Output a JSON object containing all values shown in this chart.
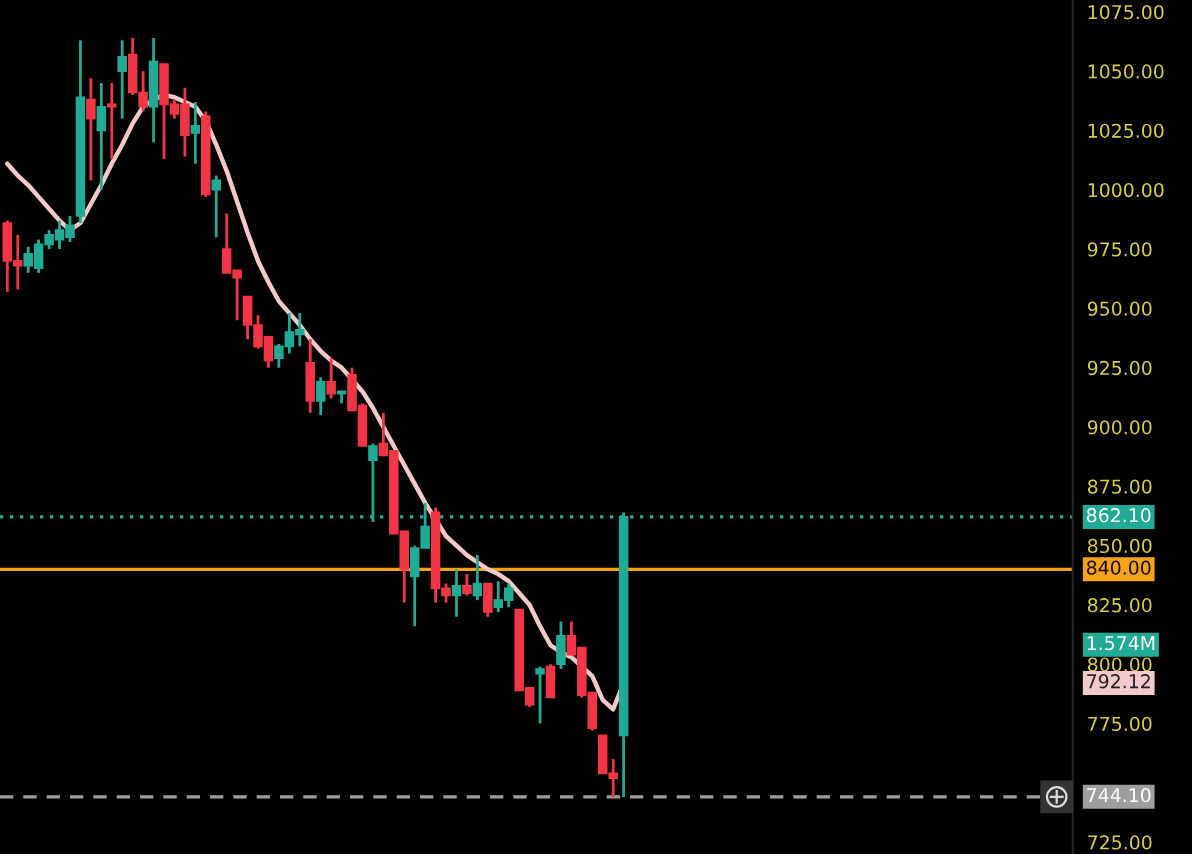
{
  "chart_data": {
    "type": "candlestick",
    "categories": [
      null,
      null,
      null,
      null,
      null,
      null,
      null,
      null,
      null,
      null,
      null,
      null,
      null,
      null,
      null,
      null,
      null,
      null,
      null,
      null,
      null,
      null,
      null,
      null,
      null,
      null,
      null,
      null,
      null,
      null,
      null,
      null,
      null,
      null,
      null,
      null,
      null,
      null,
      null,
      null,
      null,
      null,
      null,
      null,
      null,
      null,
      null,
      null,
      null,
      null,
      null,
      null,
      null,
      null,
      null,
      null,
      null,
      null,
      null,
      null
    ],
    "ohlc": [
      [
        986,
        987,
        957,
        970
      ],
      [
        970,
        981,
        958,
        968
      ],
      [
        968,
        976,
        965,
        973
      ],
      [
        967,
        979,
        965,
        977
      ],
      [
        977,
        983,
        975,
        981
      ],
      [
        979,
        987,
        975,
        983
      ],
      [
        980,
        989,
        978,
        985
      ],
      [
        989,
        1063,
        986,
        1039
      ],
      [
        1038,
        1047,
        1004,
        1030
      ],
      [
        1025,
        1045,
        1000,
        1035
      ],
      [
        1036,
        1045,
        1013,
        1035
      ],
      [
        1050,
        1063,
        1030,
        1056
      ],
      [
        1057,
        1064,
        1040,
        1041
      ],
      [
        1041,
        1050,
        1033,
        1035
      ],
      [
        1035,
        1064,
        1020,
        1054
      ],
      [
        1053,
        1053,
        1013,
        1036
      ],
      [
        1036,
        1038,
        1030,
        1032
      ],
      [
        1036,
        1043,
        1014,
        1023
      ],
      [
        1024,
        1037,
        1011,
        1027
      ],
      [
        1031,
        1033,
        997,
        998
      ],
      [
        1000,
        1006,
        980,
        1004
      ],
      [
        975,
        990,
        965,
        965
      ],
      [
        966,
        966,
        945,
        963
      ],
      [
        955,
        955,
        937,
        943
      ],
      [
        943,
        947,
        933,
        934
      ],
      [
        938,
        938,
        925,
        928
      ],
      [
        929,
        935,
        925,
        934
      ],
      [
        934,
        948,
        931,
        940
      ],
      [
        939,
        948,
        934,
        941
      ],
      [
        927,
        937,
        906,
        911
      ],
      [
        911,
        921,
        905,
        919
      ],
      [
        919,
        929,
        912,
        914
      ],
      [
        914,
        915,
        910,
        915
      ],
      [
        922,
        925,
        907,
        907
      ],
      [
        909,
        910,
        892,
        892
      ],
      [
        886,
        893,
        860,
        892
      ],
      [
        893,
        906,
        888,
        888
      ],
      [
        890,
        890,
        855,
        855
      ],
      [
        856,
        856,
        826,
        840
      ],
      [
        837,
        850,
        816,
        849
      ],
      [
        849,
        868,
        849,
        858
      ],
      [
        864,
        866,
        826,
        832
      ],
      [
        832,
        834,
        826,
        829
      ],
      [
        829,
        840,
        820,
        833
      ],
      [
        833,
        838,
        829,
        830
      ],
      [
        829,
        846,
        827,
        834
      ],
      [
        834,
        834,
        820,
        822
      ],
      [
        824,
        835,
        822,
        827
      ],
      [
        827,
        834,
        824,
        832
      ],
      [
        823,
        823,
        789,
        789
      ],
      [
        790,
        790,
        782,
        783
      ],
      [
        796,
        799,
        775,
        798
      ],
      [
        799,
        800,
        786,
        786
      ],
      [
        800,
        818,
        798,
        812
      ],
      [
        812,
        818,
        804,
        804
      ],
      [
        807,
        807,
        786,
        787
      ],
      [
        788,
        788,
        772,
        773
      ],
      [
        770,
        770,
        754,
        754
      ],
      [
        754,
        760,
        744,
        752
      ],
      [
        770,
        864,
        744,
        862.1
      ]
    ],
    "colors": [
      "#f23645",
      "#f23645",
      "#22ab94",
      "#22ab94",
      "#22ab94",
      "#22ab94",
      "#22ab94",
      "#22ab94",
      "#f23645",
      "#22ab94",
      "#f23645",
      "#22ab94",
      "#f23645",
      "#f23645",
      "#22ab94",
      "#f23645",
      "#f23645",
      "#f23645",
      "#22ab94",
      "#f23645",
      "#22ab94",
      "#f23645",
      "#f23645",
      "#f23645",
      "#f23645",
      "#f23645",
      "#22ab94",
      "#22ab94",
      "#22ab94",
      "#f23645",
      "#22ab94",
      "#f23645",
      "#22ab94",
      "#f23645",
      "#f23645",
      "#22ab94",
      "#f23645",
      "#f23645",
      "#f23645",
      "#22ab94",
      "#22ab94",
      "#f23645",
      "#f23645",
      "#22ab94",
      "#f23645",
      "#22ab94",
      "#f23645",
      "#22ab94",
      "#22ab94",
      "#f23645",
      "#f23645",
      "#22ab94",
      "#f23645",
      "#22ab94",
      "#f23645",
      "#f23645",
      "#f23645",
      "#f23645",
      "#f23645",
      "#22ab94"
    ],
    "series": [
      {
        "type": "line",
        "color": "#f3c9c9",
        "values": [
          1011,
          1006,
          1002,
          997,
          992,
          987,
          983,
          986,
          994,
          1002,
          1011,
          1019,
          1028,
          1035,
          1038,
          1040,
          1039,
          1037,
          1035,
          1029,
          1019,
          1008,
          995,
          982,
          970,
          961,
          953,
          948,
          943,
          937,
          932,
          928,
          925,
          920,
          915,
          908,
          900,
          892,
          884,
          876,
          868,
          861,
          854,
          850,
          846,
          843,
          840,
          838,
          835,
          830,
          825,
          816,
          808,
          805,
          803,
          799,
          795,
          785,
          781,
          792.12
        ]
      }
    ],
    "ylim": [
      720,
      1080
    ],
    "yticks": [
      {
        "value": 725,
        "label": "725.00"
      },
      {
        "value": 775,
        "label": "775.00"
      },
      {
        "value": 800,
        "label": "800.00"
      },
      {
        "value": 825,
        "label": "825.00"
      },
      {
        "value": 850,
        "label": "850.00"
      },
      {
        "value": 875,
        "label": "875.00"
      },
      {
        "value": 900,
        "label": "900.00"
      },
      {
        "value": 925,
        "label": "925.00"
      },
      {
        "value": 950,
        "label": "950.00"
      },
      {
        "value": 975,
        "label": "975.00"
      },
      {
        "value": 1000,
        "label": "1000.00"
      },
      {
        "value": 1025,
        "label": "1025.00"
      },
      {
        "value": 1050,
        "label": "1050.00"
      },
      {
        "value": 1075,
        "label": "1075.00"
      }
    ],
    "tick_labels": "y",
    "ref_lines": [
      {
        "axis": "y",
        "value": 840,
        "label": "840.00",
        "color": "#f7a21b",
        "line_style": "solid"
      },
      {
        "axis": "y",
        "value": 862.1,
        "label": "862.10",
        "color": "#22ab94",
        "line_style": "dotted"
      },
      {
        "axis": "y",
        "value": 744.1,
        "label": "744.10",
        "color": "#9e9e9e",
        "line_style": "dashed"
      }
    ],
    "annotations": [
      "1.574M",
      "792.12"
    ]
  }
}
